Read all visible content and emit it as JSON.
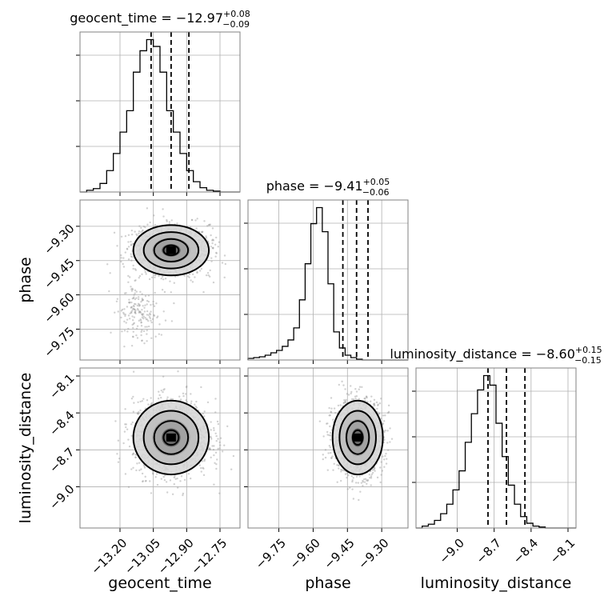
{
  "chart_data": {
    "type": "corner",
    "parameters": [
      "geocent_time",
      "phase",
      "luminosity_distance"
    ],
    "titles": [
      {
        "param": "geocent_time",
        "prefix": "geocent_time = ",
        "value": "−12.97",
        "plus": "+0.08",
        "minus": "−0.09"
      },
      {
        "param": "phase",
        "prefix": "phase = ",
        "value": "−9.41",
        "plus": "+0.05",
        "minus": "−0.06"
      },
      {
        "param": "luminosity_distance",
        "prefix": "luminosity_distance = ",
        "value": "−8.60",
        "plus": "+0.15",
        "minus": "−0.15"
      }
    ],
    "ranges": {
      "geocent_time": [
        -13.38,
        -12.66
      ],
      "phase": [
        -9.885,
        -9.185
      ],
      "luminosity_distance": [
        -9.335,
        -8.035
      ]
    },
    "ticks": {
      "geocent_time": {
        "values": [
          -13.2,
          -13.05,
          -12.9,
          -12.75
        ],
        "labels": [
          "−13.20",
          "−13.05",
          "−12.90",
          "−12.75"
        ]
      },
      "phase": {
        "values": [
          -9.75,
          -9.6,
          -9.45,
          -9.3
        ],
        "labels": [
          "−9.75",
          "−9.60",
          "−9.45",
          "−9.30"
        ]
      },
      "luminosity_distance": {
        "values": [
          -9.0,
          -8.7,
          -8.4,
          -8.1
        ],
        "labels": [
          "−9.0",
          "−8.7",
          "−8.4",
          "−8.1"
        ]
      }
    },
    "quantiles": {
      "geocent_time": [
        -13.06,
        -12.97,
        -12.89
      ],
      "phase": [
        -9.47,
        -9.41,
        -9.36
      ],
      "luminosity_distance": [
        -8.75,
        -8.6,
        -8.45
      ]
    },
    "histograms": {
      "geocent_time": {
        "start": -13.38,
        "step": 0.03,
        "counts": [
          0,
          2,
          4,
          10,
          25,
          45,
          70,
          95,
          140,
          165,
          178,
          170,
          140,
          95,
          70,
          45,
          25,
          12,
          5,
          2,
          1,
          0,
          0,
          0
        ]
      },
      "phase": {
        "start": -9.885,
        "step": 0.025,
        "counts": [
          2,
          3,
          4,
          6,
          9,
          12,
          17,
          25,
          40,
          75,
          120,
          170,
          190,
          160,
          95,
          35,
          15,
          6,
          3,
          1,
          0,
          0,
          0,
          0,
          0,
          0,
          0,
          0
        ]
      },
      "luminosity_distance": {
        "start": -9.335,
        "step": 0.05,
        "counts": [
          0,
          2,
          4,
          8,
          15,
          25,
          40,
          60,
          90,
          120,
          145,
          160,
          150,
          110,
          75,
          45,
          25,
          12,
          5,
          2,
          1,
          0,
          0,
          0,
          0,
          0
        ]
      }
    },
    "samples": {
      "geocent_time": {
        "mean": -12.97,
        "sd": 0.085
      },
      "phase": {
        "mean": -9.405,
        "sd": 0.055
      },
      "luminosity_distance": {
        "mean": -8.6,
        "sd": 0.15
      }
    },
    "grid": true,
    "quantile_line_style": "dashed"
  }
}
